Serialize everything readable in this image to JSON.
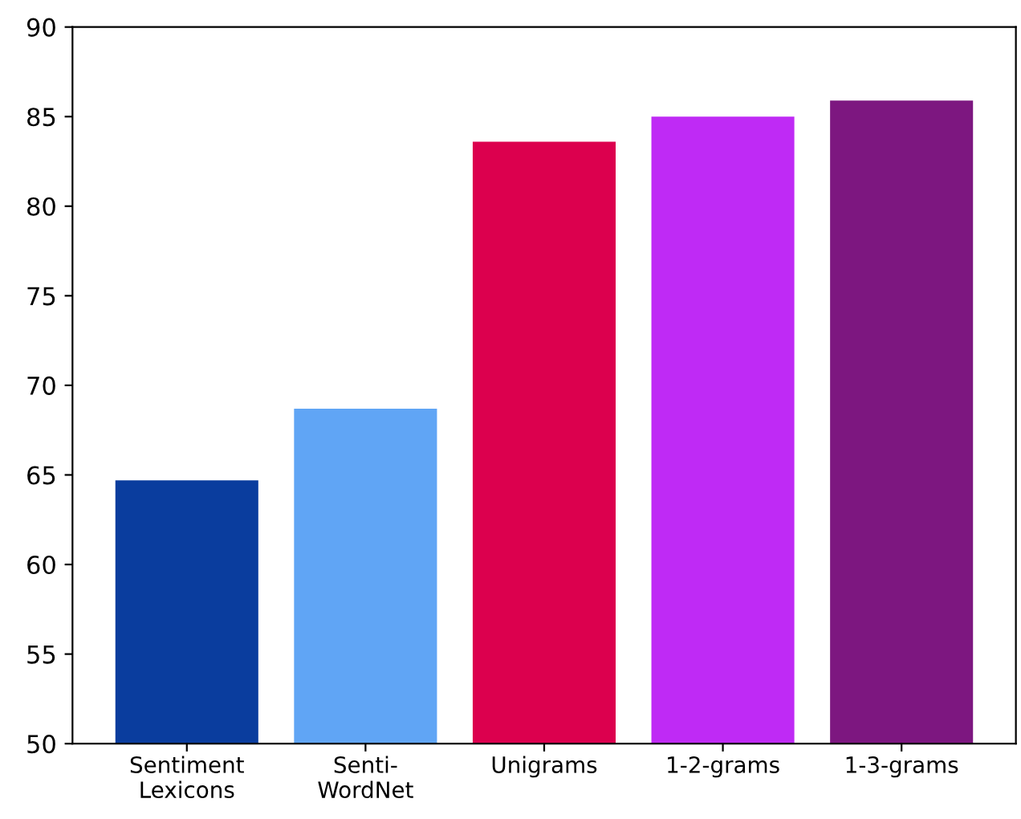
{
  "chart_data": {
    "type": "bar",
    "categories": [
      "Sentiment\nLexicons",
      "Senti-\nWordNet",
      "Unigrams",
      "1-2-grams",
      "1-3-grams"
    ],
    "values": [
      64.7,
      68.7,
      83.6,
      85.0,
      85.9
    ],
    "colors": [
      "#0a3d9e",
      "#60a5f5",
      "#dc004e",
      "#bf2af5",
      "#7d1780"
    ],
    "ylim": [
      50,
      90
    ],
    "yticks": [
      50,
      55,
      60,
      65,
      70,
      75,
      80,
      85,
      90
    ],
    "grid": false
  }
}
